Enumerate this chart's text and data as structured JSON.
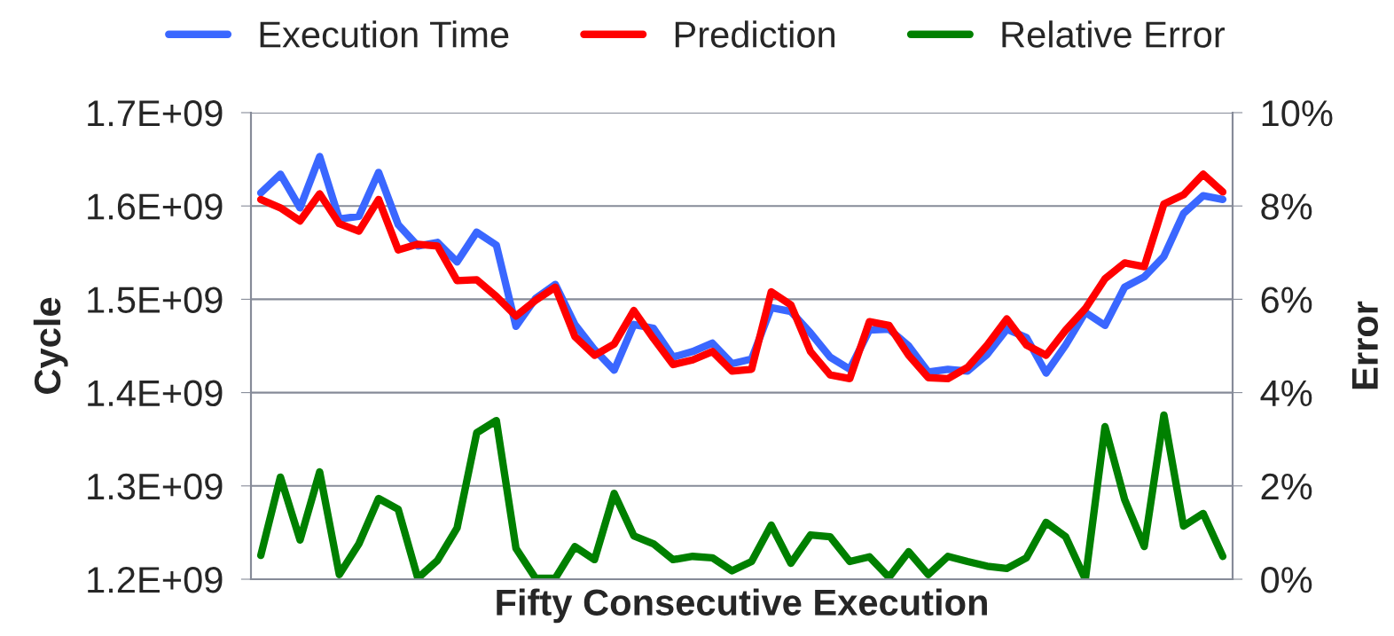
{
  "chart_data": {
    "type": "line",
    "xlabel": "Fifty Consecutive Execution",
    "ylabel": "Cycle",
    "y2label": "Error",
    "categories": [
      null,
      null,
      null,
      null,
      null,
      null,
      null,
      null,
      null,
      null,
      null,
      null,
      null,
      null,
      null,
      null,
      null,
      null,
      null,
      null,
      null,
      null,
      null,
      null,
      null,
      null,
      null,
      null,
      null,
      null,
      null,
      null,
      null,
      null,
      null,
      null,
      null,
      null,
      null,
      null,
      null,
      null,
      null,
      null,
      null,
      null,
      null,
      null,
      null,
      null
    ],
    "series": [
      {
        "name": "Execution Time",
        "color": "#3a67ff",
        "values": [
          1614000000,
          1634000000,
          1598000000,
          1653000000,
          1586000000,
          1589000000,
          1636000000,
          1580000000,
          1557000000,
          1561000000,
          1540000000,
          1572000000,
          1558000000,
          1471000000,
          1501000000,
          1516000000,
          1473000000,
          1446000000,
          1424000000,
          1473000000,
          1469000000,
          1438000000,
          1444000000,
          1453000000,
          1431000000,
          1436000000,
          1491000000,
          1487000000,
          1464000000,
          1438000000,
          1425000000,
          1467000000,
          1468000000,
          1450000000,
          1422000000,
          1425000000,
          1423000000,
          1441000000,
          1468000000,
          1459000000,
          1421000000,
          1451000000,
          1486000000,
          1472000000,
          1513000000,
          1524000000,
          1546000000,
          1592000000,
          1611000000,
          1607000000
        ]
      },
      {
        "name": "Prediction",
        "color": "#ff0000",
        "values": [
          1607000000,
          1598000000,
          1584000000,
          1613000000,
          1581000000,
          1573000000,
          1607000000,
          1553000000,
          1559000000,
          1557000000,
          1520000000,
          1521000000,
          1503000000,
          1482000000,
          1499000000,
          1513000000,
          1460000000,
          1440000000,
          1452000000,
          1488000000,
          1458000000,
          1430000000,
          1435000000,
          1444000000,
          1423000000,
          1425000000,
          1508000000,
          1494000000,
          1444000000,
          1419000000,
          1415000000,
          1476000000,
          1472000000,
          1440000000,
          1416000000,
          1415000000,
          1427000000,
          1451000000,
          1479000000,
          1451000000,
          1440000000,
          1467000000,
          1490000000,
          1522000000,
          1539000000,
          1535000000,
          1602000000,
          1612000000,
          1634000000,
          1615000000
        ]
      },
      {
        "name": "Relative Error",
        "color": "#008000",
        "axis": "y2",
        "values": [
          0.51,
          2.19,
          0.84,
          2.3,
          0.1,
          0.76,
          1.73,
          1.5,
          0.02,
          0.4,
          1.1,
          3.14,
          3.4,
          0.66,
          0.02,
          0.02,
          0.7,
          0.42,
          1.84,
          0.93,
          0.76,
          0.42,
          0.49,
          0.46,
          0.18,
          0.38,
          1.16,
          0.34,
          0.95,
          0.91,
          0.38,
          0.48,
          0.04,
          0.59,
          0.1,
          0.49,
          0.38,
          0.28,
          0.23,
          0.46,
          1.22,
          0.91,
          0.0,
          3.27,
          1.71,
          0.7,
          3.52,
          1.14,
          1.41,
          0.49
        ]
      }
    ],
    "ylim": [
      1200000000,
      1700000000
    ],
    "yticks": [
      {
        "value": 1200000000,
        "label": "1.2E+09"
      },
      {
        "value": 1300000000,
        "label": "1.3E+09"
      },
      {
        "value": 1400000000,
        "label": "1.4E+09"
      },
      {
        "value": 1500000000,
        "label": "1.5E+09"
      },
      {
        "value": 1600000000,
        "label": "1.6E+09"
      },
      {
        "value": 1700000000,
        "label": "1.7E+09"
      }
    ],
    "y2lim": [
      0,
      10
    ],
    "y2ticks": [
      {
        "value": 0,
        "label": "0%"
      },
      {
        "value": 2,
        "label": "2%"
      },
      {
        "value": 4,
        "label": "4%"
      },
      {
        "value": 6,
        "label": "6%"
      },
      {
        "value": 8,
        "label": "8%"
      },
      {
        "value": 10,
        "label": "10%"
      }
    ],
    "grid": "y",
    "legend": "top",
    "marker": "none",
    "line_style": "solid"
  }
}
